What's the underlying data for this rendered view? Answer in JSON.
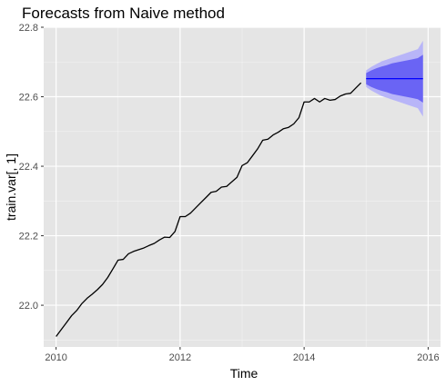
{
  "chart_data": {
    "type": "line",
    "title": "Forecasts from Naive method",
    "xlabel": "Time",
    "ylabel": "train.var[, 1]",
    "xlim": [
      2009.8,
      2016.2
    ],
    "ylim": [
      21.88,
      22.8
    ],
    "x_ticks": [
      2010,
      2012,
      2014,
      2016
    ],
    "x_tick_labels": [
      "2010",
      "2012",
      "2014",
      "2016"
    ],
    "y_ticks": [
      22.0,
      22.2,
      22.4,
      22.6,
      22.8
    ],
    "y_tick_labels": [
      "22.0",
      "22.2",
      "22.4",
      "22.6",
      "22.8"
    ],
    "grid": true,
    "series": [
      {
        "x": [
          2010.0,
          2010.083,
          2010.167,
          2010.25,
          2010.333,
          2010.417,
          2010.5,
          2010.583,
          2010.667,
          2010.75,
          2010.833,
          2010.917,
          2011.0,
          2011.083,
          2011.167,
          2011.25,
          2011.333,
          2011.417,
          2011.5,
          2011.583,
          2011.667,
          2011.75,
          2011.833,
          2011.917,
          2012.0,
          2012.083,
          2012.167,
          2012.25,
          2012.333,
          2012.417,
          2012.5,
          2012.583,
          2012.667,
          2012.75,
          2012.833,
          2012.917,
          2013.0,
          2013.083,
          2013.167,
          2013.25,
          2013.333,
          2013.417,
          2013.5,
          2013.583,
          2013.667,
          2013.75,
          2013.833,
          2013.917,
          2014.0,
          2014.083,
          2014.167,
          2014.25,
          2014.333,
          2014.417,
          2014.5,
          2014.583,
          2014.667,
          2014.75,
          2014.833,
          2014.917
        ],
        "values": [
          21.91,
          21.93,
          21.95,
          21.97,
          21.985,
          22.005,
          22.02,
          22.032,
          22.045,
          22.06,
          22.08,
          22.105,
          22.13,
          22.132,
          22.148,
          22.155,
          22.16,
          22.165,
          22.172,
          22.178,
          22.188,
          22.196,
          22.195,
          22.212,
          22.255,
          22.255,
          22.265,
          22.28,
          22.295,
          22.31,
          22.325,
          22.328,
          22.34,
          22.342,
          22.355,
          22.368,
          22.402,
          22.41,
          22.43,
          22.45,
          22.475,
          22.478,
          22.49,
          22.498,
          22.508,
          22.512,
          22.522,
          22.54,
          22.585,
          22.585,
          22.595,
          22.585,
          22.595,
          22.59,
          22.592,
          22.602,
          22.608,
          22.61,
          22.625,
          22.64
        ]
      },
      {
        "x": [
          2015.0,
          2015.917
        ],
        "values": [
          22.652,
          22.652
        ]
      }
    ],
    "intervals": [
      {
        "level": 95,
        "color": "#b8b5f8",
        "x": [
          2015.0,
          2015.083,
          2015.167,
          2015.25,
          2015.333,
          2015.417,
          2015.5,
          2015.583,
          2015.667,
          2015.75,
          2015.833,
          2015.917
        ],
        "lower": [
          22.628,
          22.618,
          22.61,
          22.602,
          22.597,
          22.592,
          22.587,
          22.582,
          22.577,
          22.572,
          22.567,
          22.543
        ],
        "upper": [
          22.676,
          22.686,
          22.694,
          22.702,
          22.707,
          22.712,
          22.717,
          22.722,
          22.727,
          22.732,
          22.737,
          22.761
        ]
      },
      {
        "level": 80,
        "color": "#6a64f4",
        "x": [
          2015.0,
          2015.083,
          2015.167,
          2015.25,
          2015.333,
          2015.417,
          2015.5,
          2015.583,
          2015.667,
          2015.75,
          2015.833,
          2015.917
        ],
        "lower": [
          22.636,
          22.628,
          22.622,
          22.617,
          22.613,
          22.608,
          22.605,
          22.602,
          22.599,
          22.596,
          22.593,
          22.583
        ],
        "upper": [
          22.668,
          22.676,
          22.682,
          22.687,
          22.691,
          22.696,
          22.699,
          22.702,
          22.705,
          22.708,
          22.711,
          22.721
        ]
      }
    ],
    "colors": {
      "panel": "#e5e5e5",
      "grid_major": "#ffffff",
      "history_line": "#000000",
      "forecast_line": "#0000ff"
    }
  }
}
